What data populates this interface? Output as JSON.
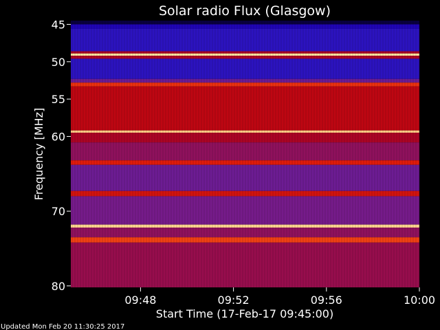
{
  "chart_data": {
    "type": "heatmap",
    "title": "Solar radio Flux (Glasgow)",
    "xlabel": "Start Time (17-Feb-17 09:45:00)",
    "ylabel": "Frequency [MHz]",
    "x_range": [
      "09:45:00",
      "10:00:00"
    ],
    "y_range_mhz": [
      44.5,
      80.2
    ],
    "y_ticks": [
      {
        "value": 45,
        "label": "45"
      },
      {
        "value": 50,
        "label": "50"
      },
      {
        "value": 55,
        "label": "55"
      },
      {
        "value": 60,
        "label": "60"
      },
      {
        "value": 70,
        "label": "70"
      },
      {
        "value": 80,
        "label": "80"
      }
    ],
    "x_ticks": [
      {
        "minutes": 3,
        "label": "09:48"
      },
      {
        "minutes": 7,
        "label": "09:52"
      },
      {
        "minutes": 11,
        "label": "09:56"
      },
      {
        "minutes": 15,
        "label": "10:00"
      }
    ],
    "colormap": [
      "#000000",
      "#1b00b4",
      "#3a24c8",
      "#7a1a86",
      "#b40014",
      "#e51e0a",
      "#ff6a1e",
      "#ffe6a0"
    ],
    "bands_mhz": [
      {
        "from": 44.5,
        "to": 45.0,
        "level": 0.05
      },
      {
        "from": 45.0,
        "to": 45.6,
        "level": 0.16
      },
      {
        "from": 45.6,
        "to": 48.6,
        "level": 0.22
      },
      {
        "from": 48.6,
        "to": 48.9,
        "level": 0.55
      },
      {
        "from": 48.9,
        "to": 49.2,
        "level": 1.0
      },
      {
        "from": 49.2,
        "to": 49.6,
        "level": 0.55
      },
      {
        "from": 49.6,
        "to": 52.3,
        "level": 0.22
      },
      {
        "from": 52.3,
        "to": 52.8,
        "level": 0.4
      },
      {
        "from": 52.8,
        "to": 53.3,
        "level": 0.75
      },
      {
        "from": 53.3,
        "to": 59.2,
        "level": 0.6
      },
      {
        "from": 59.2,
        "to": 59.5,
        "level": 0.97
      },
      {
        "from": 59.5,
        "to": 60.8,
        "level": 0.55
      },
      {
        "from": 60.8,
        "to": 63.2,
        "level": 0.48
      },
      {
        "from": 63.2,
        "to": 63.8,
        "level": 0.7
      },
      {
        "from": 63.8,
        "to": 67.3,
        "level": 0.4
      },
      {
        "from": 67.3,
        "to": 68.0,
        "level": 0.66
      },
      {
        "from": 68.0,
        "to": 71.8,
        "level": 0.42
      },
      {
        "from": 71.8,
        "to": 72.2,
        "level": 0.98
      },
      {
        "from": 72.2,
        "to": 73.5,
        "level": 0.48
      },
      {
        "from": 73.5,
        "to": 74.2,
        "level": 0.78
      },
      {
        "from": 74.2,
        "to": 80.2,
        "level": 0.5
      }
    ]
  },
  "footer": {
    "updated": "Updated Mon Feb 20 11:30:25 2017"
  }
}
